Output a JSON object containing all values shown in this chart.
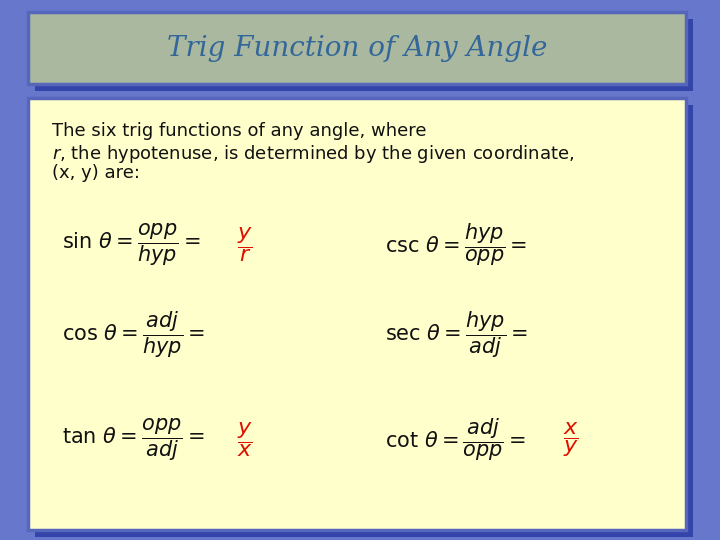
{
  "title": "Trig Function of Any Angle",
  "title_color": "#336699",
  "title_bg_color": "#aab8a0",
  "title_border_color": "#5566bb",
  "main_bg_color": "#ffffcc",
  "main_border_color": "#5566bb",
  "outer_bg_color": "#6677cc",
  "shadow_color": "#3344aa",
  "text_color": "#111111",
  "red_color": "#dd1100",
  "intro_line1": "The six trig functions of any angle, where",
  "intro_line2": "$r$, the hypotenuse, is determined by the given coordinate,",
  "intro_line3": "(x, y) are:"
}
